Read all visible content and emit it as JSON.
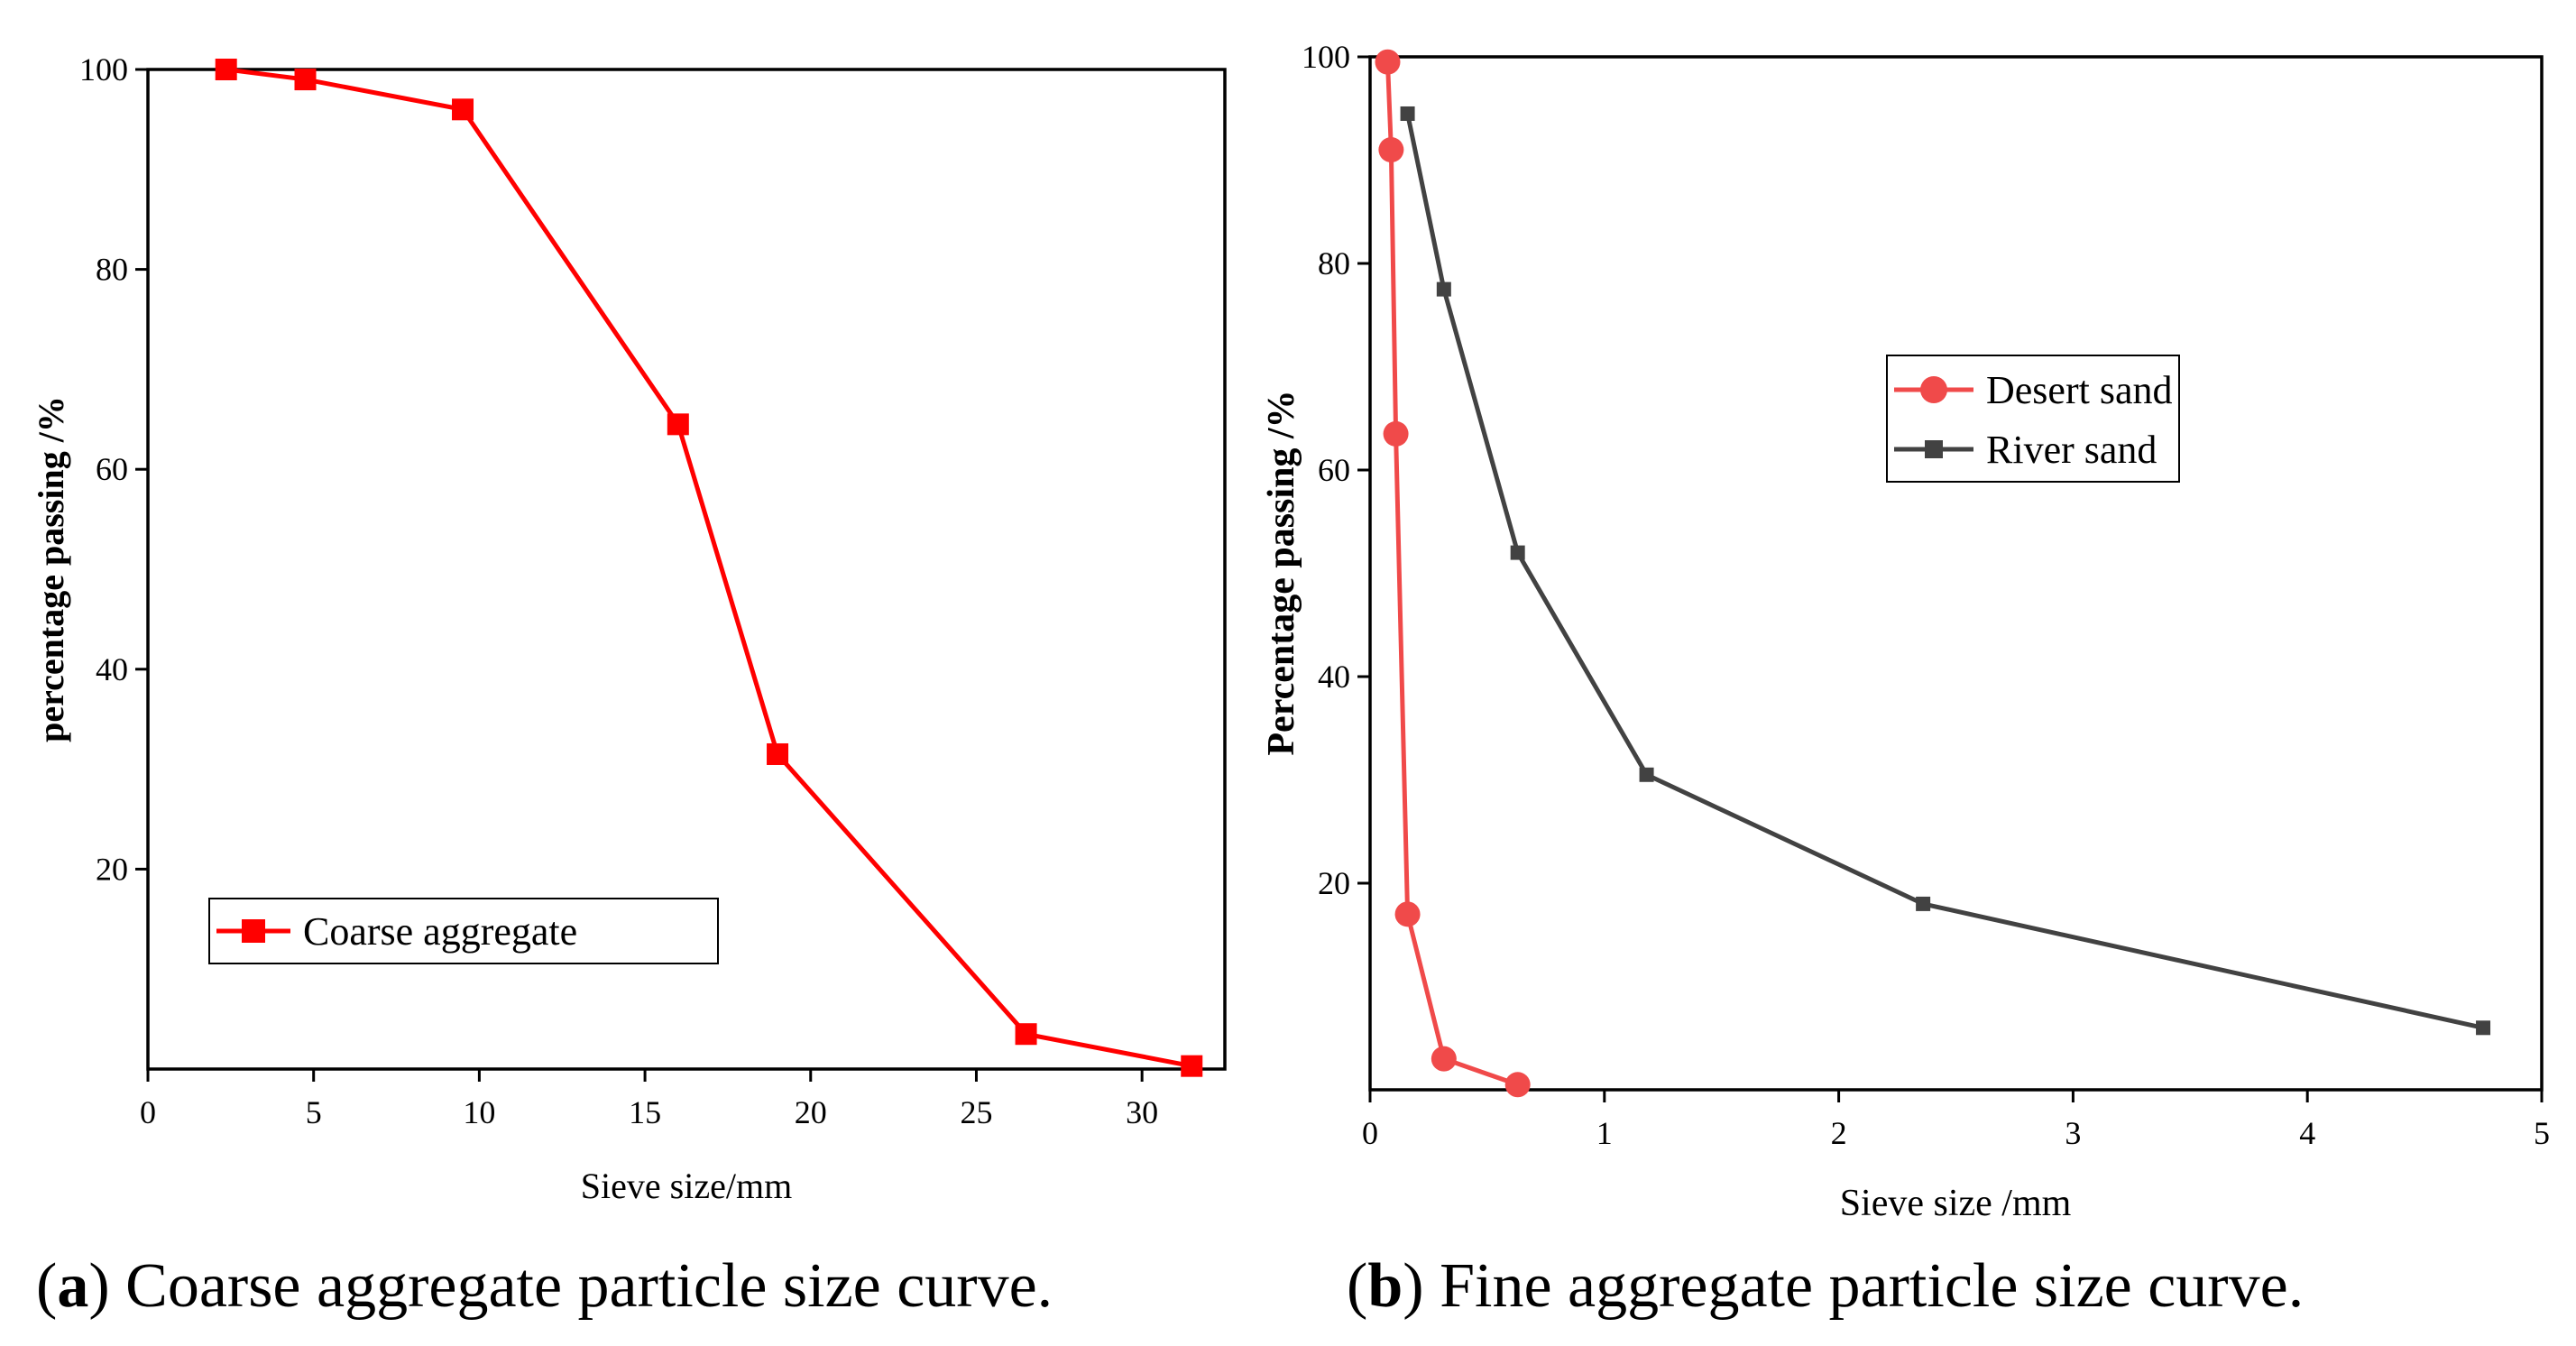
{
  "chart_data": [
    {
      "id": "a",
      "type": "line",
      "caption_letter": "a",
      "caption_text": "Coarse aggregate particle size curve.",
      "xlabel": "Sieve size/mm",
      "ylabel": "percentage passing /%",
      "xlim": [
        0,
        32.5
      ],
      "ylim": [
        0,
        100
      ],
      "xticks": [
        0,
        5,
        10,
        15,
        20,
        25,
        30
      ],
      "yticks": [
        20,
        40,
        60,
        80,
        100
      ],
      "legend_position": "lower-left",
      "series": [
        {
          "name": "Coarse aggregate",
          "color": "#ff0000",
          "marker": "square",
          "x": [
            2.36,
            4.75,
            9.5,
            16,
            19,
            26.5,
            31.5
          ],
          "y": [
            100,
            99,
            96,
            64.5,
            31.5,
            3.5,
            0.3
          ]
        }
      ]
    },
    {
      "id": "b",
      "type": "line",
      "caption_letter": "b",
      "caption_text": "Fine aggregate particle size curve.",
      "xlabel": "Sieve size /mm",
      "ylabel": "Percentage passing /%",
      "xlim": [
        0,
        5
      ],
      "ylim": [
        0,
        100
      ],
      "xticks": [
        0,
        1,
        2,
        3,
        4,
        5
      ],
      "yticks": [
        20,
        40,
        60,
        80,
        100
      ],
      "legend_position": "upper-middle",
      "series": [
        {
          "name": "Desert sand",
          "color": "#f04a4a",
          "marker": "circle",
          "x": [
            0.075,
            0.09,
            0.11,
            0.16,
            0.315,
            0.63
          ],
          "y": [
            99.5,
            91,
            63.5,
            17,
            3,
            0.5
          ]
        },
        {
          "name": "River sand",
          "color": "#424242",
          "marker": "square",
          "x": [
            0.16,
            0.315,
            0.63,
            1.18,
            2.36,
            4.75
          ],
          "y": [
            94.5,
            77.5,
            52,
            30.5,
            18,
            6
          ]
        }
      ]
    }
  ]
}
